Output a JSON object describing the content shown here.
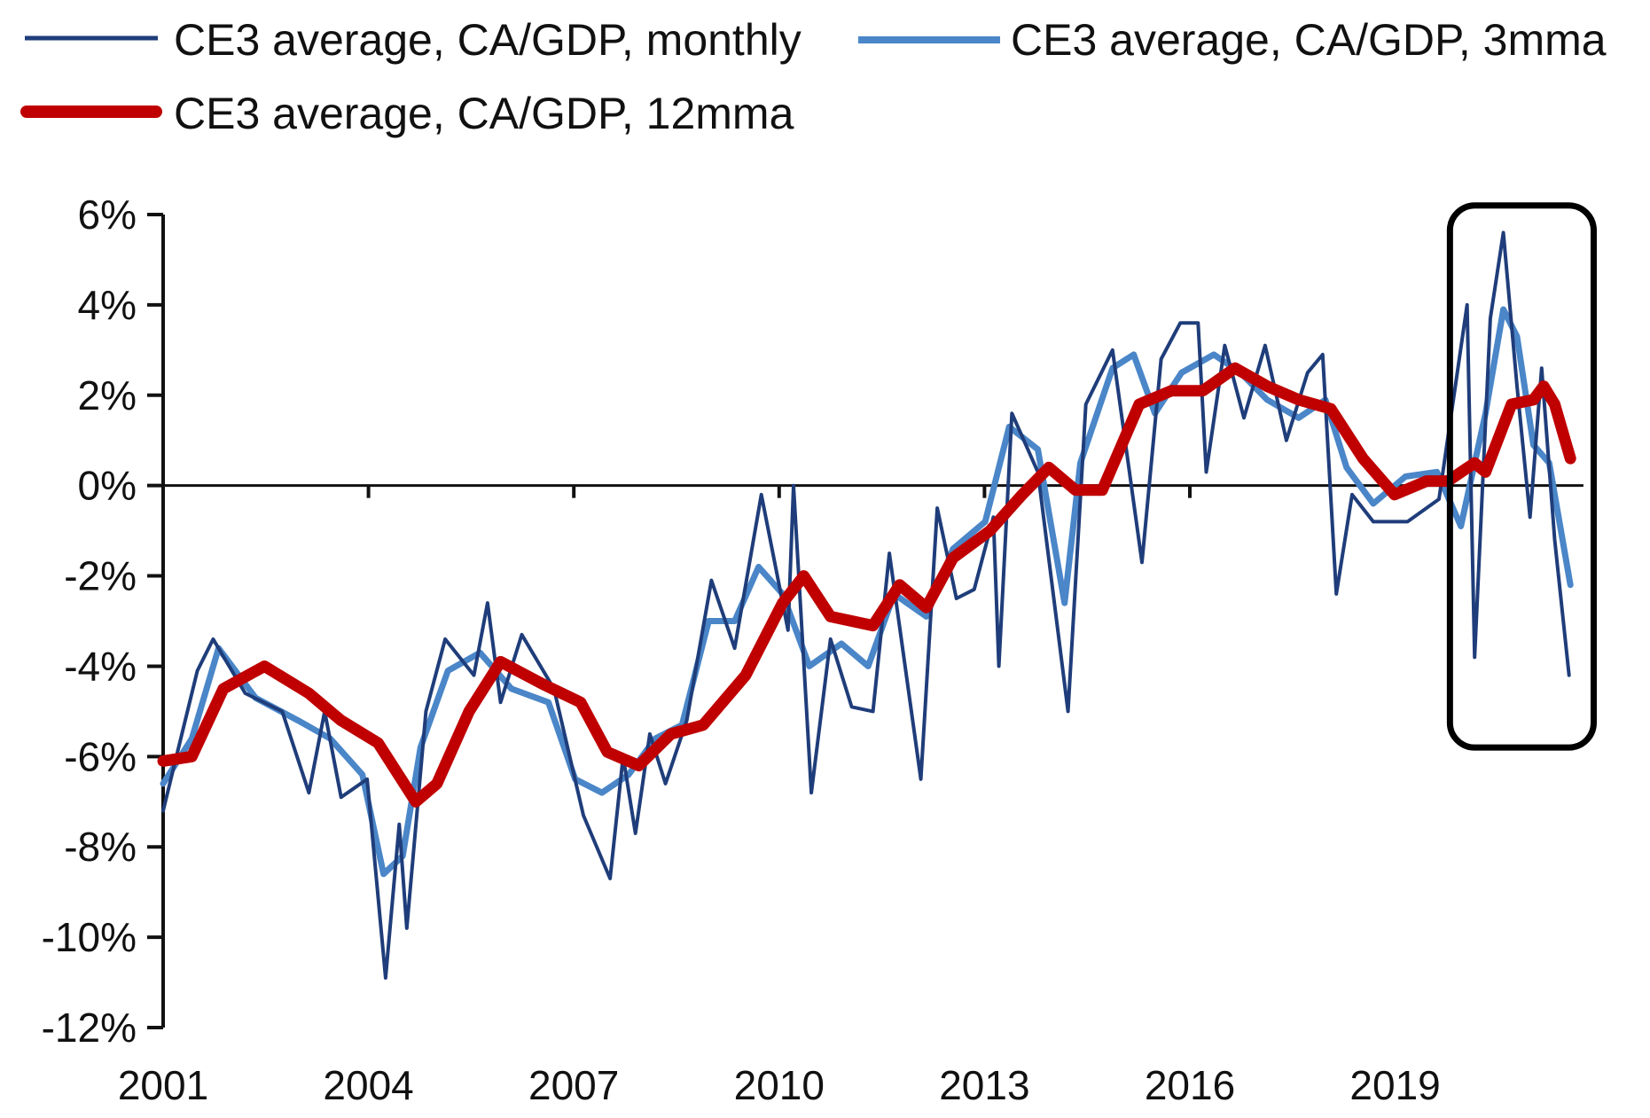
{
  "chart_data": {
    "type": "line",
    "title": "",
    "xlabel": "",
    "ylabel": "",
    "xlim": [
      2001,
      2022
    ],
    "ylim": [
      -12,
      6
    ],
    "grid": false,
    "legend_position": "top",
    "x_ticks": [
      2001,
      2004,
      2007,
      2010,
      2013,
      2016,
      2019
    ],
    "x_tick_labels": [
      "2001",
      "2004",
      "2007",
      "2010",
      "2013",
      "2016",
      "2019"
    ],
    "y_ticks": [
      6,
      4,
      2,
      0,
      -2,
      -4,
      -6,
      -8,
      -10,
      -12
    ],
    "y_tick_labels": [
      "6%",
      "4%",
      "2%",
      "0%",
      "-2%",
      "-4%",
      "-6%",
      "-8%",
      "-10%",
      "-12%"
    ],
    "annotations": [
      {
        "type": "rounded-box",
        "label": "highlight of 2020-2021 period",
        "x_range": [
          2019.8,
          2021.9
        ],
        "y_range": [
          -5.8,
          6.2
        ]
      }
    ],
    "series": [
      {
        "name": "CE3 average, CA/GDP, monthly",
        "color": "#1f3d7a",
        "unit": "% of GDP",
        "points": [
          [
            2001.0,
            -7.2
          ],
          [
            2001.5,
            -4.1
          ],
          [
            2001.73,
            -3.4
          ],
          [
            2002.2,
            -4.6
          ],
          [
            2002.74,
            -5.0
          ],
          [
            2003.13,
            -6.8
          ],
          [
            2003.36,
            -5.0
          ],
          [
            2003.6,
            -6.9
          ],
          [
            2003.98,
            -6.5
          ],
          [
            2004.25,
            -10.9
          ],
          [
            2004.45,
            -7.5
          ],
          [
            2004.56,
            -9.8
          ],
          [
            2004.84,
            -5.0
          ],
          [
            2005.12,
            -3.4
          ],
          [
            2005.54,
            -4.2
          ],
          [
            2005.74,
            -2.6
          ],
          [
            2005.93,
            -4.8
          ],
          [
            2006.24,
            -3.3
          ],
          [
            2006.71,
            -4.5
          ],
          [
            2007.14,
            -7.3
          ],
          [
            2007.53,
            -8.7
          ],
          [
            2007.72,
            -6.0
          ],
          [
            2007.9,
            -7.7
          ],
          [
            2008.11,
            -5.5
          ],
          [
            2008.34,
            -6.6
          ],
          [
            2008.65,
            -5.2
          ],
          [
            2009.01,
            -2.1
          ],
          [
            2009.35,
            -3.6
          ],
          [
            2009.74,
            -0.2
          ],
          [
            2010.13,
            -3.2
          ],
          [
            2010.21,
            0.0
          ],
          [
            2010.47,
            -6.8
          ],
          [
            2010.75,
            -3.4
          ],
          [
            2011.06,
            -4.9
          ],
          [
            2011.37,
            -5.0
          ],
          [
            2011.61,
            -1.5
          ],
          [
            2012.07,
            -6.5
          ],
          [
            2012.31,
            -0.5
          ],
          [
            2012.59,
            -2.5
          ],
          [
            2012.85,
            -2.3
          ],
          [
            2013.13,
            -0.7
          ],
          [
            2013.21,
            -4.0
          ],
          [
            2013.4,
            1.6
          ],
          [
            2013.78,
            0.3
          ],
          [
            2014.22,
            -5.0
          ],
          [
            2014.48,
            1.8
          ],
          [
            2014.87,
            3.0
          ],
          [
            2015.3,
            -1.7
          ],
          [
            2015.58,
            2.8
          ],
          [
            2015.86,
            3.6
          ],
          [
            2016.12,
            3.6
          ],
          [
            2016.24,
            0.3
          ],
          [
            2016.51,
            3.1
          ],
          [
            2016.79,
            1.5
          ],
          [
            2017.1,
            3.1
          ],
          [
            2017.41,
            1.0
          ],
          [
            2017.72,
            2.5
          ],
          [
            2017.94,
            2.9
          ],
          [
            2018.14,
            -2.4
          ],
          [
            2018.37,
            -0.2
          ],
          [
            2018.68,
            -0.8
          ],
          [
            2019.18,
            -0.8
          ],
          [
            2019.64,
            -0.3
          ],
          [
            2020.05,
            4.0
          ],
          [
            2020.16,
            -3.8
          ],
          [
            2020.39,
            3.7
          ],
          [
            2020.58,
            5.6
          ],
          [
            2020.78,
            2.2
          ],
          [
            2020.97,
            -0.7
          ],
          [
            2021.14,
            2.6
          ],
          [
            2021.33,
            -1.2
          ],
          [
            2021.54,
            -4.2
          ]
        ]
      },
      {
        "name": "CE3 average, CA/GDP, 3mma",
        "color": "#4a86c8",
        "unit": "% of GDP",
        "points": [
          [
            2001.0,
            -6.6
          ],
          [
            2001.42,
            -5.6
          ],
          [
            2001.81,
            -3.6
          ],
          [
            2002.35,
            -4.7
          ],
          [
            2002.97,
            -5.2
          ],
          [
            2003.44,
            -5.6
          ],
          [
            2003.91,
            -6.4
          ],
          [
            2004.22,
            -8.6
          ],
          [
            2004.5,
            -8.2
          ],
          [
            2004.76,
            -5.8
          ],
          [
            2005.16,
            -4.1
          ],
          [
            2005.63,
            -3.7
          ],
          [
            2006.09,
            -4.5
          ],
          [
            2006.63,
            -4.8
          ],
          [
            2007.02,
            -6.5
          ],
          [
            2007.41,
            -6.8
          ],
          [
            2007.8,
            -6.4
          ],
          [
            2008.19,
            -5.6
          ],
          [
            2008.58,
            -5.3
          ],
          [
            2008.97,
            -3.0
          ],
          [
            2009.35,
            -3.0
          ],
          [
            2009.7,
            -1.8
          ],
          [
            2010.05,
            -2.4
          ],
          [
            2010.44,
            -4.0
          ],
          [
            2010.91,
            -3.5
          ],
          [
            2011.3,
            -4.0
          ],
          [
            2011.68,
            -2.4
          ],
          [
            2012.15,
            -2.9
          ],
          [
            2012.54,
            -1.4
          ],
          [
            2013.01,
            -0.8
          ],
          [
            2013.36,
            1.3
          ],
          [
            2013.78,
            0.8
          ],
          [
            2014.17,
            -2.6
          ],
          [
            2014.4,
            0.5
          ],
          [
            2014.87,
            2.6
          ],
          [
            2015.18,
            2.9
          ],
          [
            2015.49,
            1.6
          ],
          [
            2015.88,
            2.5
          ],
          [
            2016.35,
            2.9
          ],
          [
            2016.74,
            2.5
          ],
          [
            2017.13,
            1.9
          ],
          [
            2017.59,
            1.5
          ],
          [
            2017.98,
            1.9
          ],
          [
            2018.29,
            0.4
          ],
          [
            2018.68,
            -0.4
          ],
          [
            2019.15,
            0.2
          ],
          [
            2019.61,
            0.3
          ],
          [
            2019.96,
            -0.9
          ],
          [
            2020.32,
            1.6
          ],
          [
            2020.58,
            3.9
          ],
          [
            2020.78,
            3.3
          ],
          [
            2021.02,
            0.9
          ],
          [
            2021.25,
            0.5
          ],
          [
            2021.56,
            -2.2
          ]
        ]
      },
      {
        "name": "CE3 average, CA/GDP, 12mma",
        "color": "#c00000",
        "unit": "% of GDP",
        "points": [
          [
            2001.0,
            -6.1
          ],
          [
            2001.42,
            -6.0
          ],
          [
            2001.88,
            -4.5
          ],
          [
            2002.48,
            -4.0
          ],
          [
            2003.13,
            -4.6
          ],
          [
            2003.6,
            -5.2
          ],
          [
            2004.14,
            -5.7
          ],
          [
            2004.69,
            -7.0
          ],
          [
            2005.0,
            -6.6
          ],
          [
            2005.47,
            -5.0
          ],
          [
            2005.93,
            -3.9
          ],
          [
            2006.55,
            -4.4
          ],
          [
            2007.1,
            -4.8
          ],
          [
            2007.49,
            -5.9
          ],
          [
            2007.95,
            -6.2
          ],
          [
            2008.42,
            -5.5
          ],
          [
            2008.89,
            -5.3
          ],
          [
            2009.51,
            -4.2
          ],
          [
            2010.05,
            -2.6
          ],
          [
            2010.36,
            -2.0
          ],
          [
            2010.75,
            -2.9
          ],
          [
            2011.37,
            -3.1
          ],
          [
            2011.76,
            -2.2
          ],
          [
            2012.15,
            -2.7
          ],
          [
            2012.54,
            -1.6
          ],
          [
            2013.08,
            -1.0
          ],
          [
            2013.55,
            -0.2
          ],
          [
            2013.94,
            0.4
          ],
          [
            2014.33,
            -0.1
          ],
          [
            2014.72,
            -0.1
          ],
          [
            2015.26,
            1.8
          ],
          [
            2015.73,
            2.1
          ],
          [
            2016.19,
            2.1
          ],
          [
            2016.66,
            2.6
          ],
          [
            2017.13,
            2.2
          ],
          [
            2017.59,
            1.9
          ],
          [
            2018.06,
            1.7
          ],
          [
            2018.53,
            0.6
          ],
          [
            2018.99,
            -0.2
          ],
          [
            2019.46,
            0.1
          ],
          [
            2019.77,
            0.1
          ],
          [
            2020.16,
            0.5
          ],
          [
            2020.32,
            0.3
          ],
          [
            2020.7,
            1.8
          ],
          [
            2021.02,
            1.9
          ],
          [
            2021.17,
            2.2
          ],
          [
            2021.33,
            1.8
          ],
          [
            2021.56,
            0.6
          ]
        ]
      }
    ]
  }
}
